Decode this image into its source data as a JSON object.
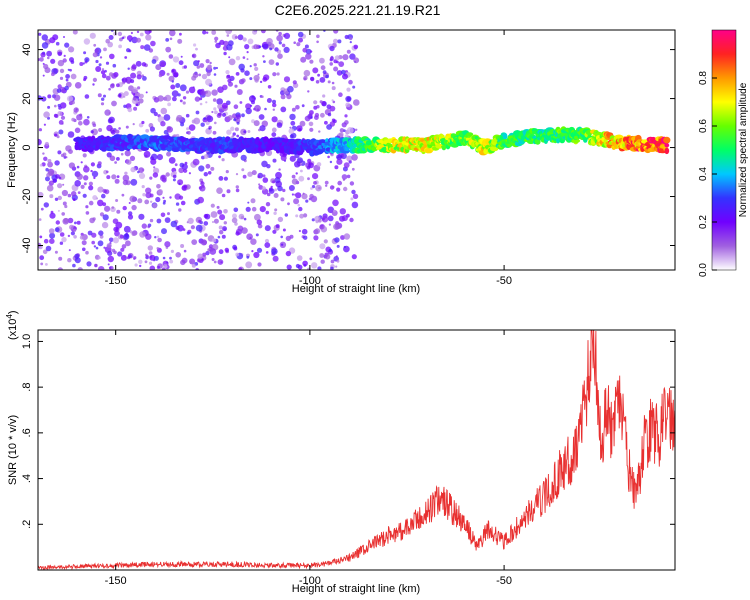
{
  "title": "C2E6.2025.221.21.19.R21",
  "chart_data": [
    {
      "type": "heatmap",
      "xlabel": "Height of straight line (km)",
      "ylabel": "Frequency (Hz)",
      "xlim": [
        -170,
        -6
      ],
      "ylim": [
        -50,
        48
      ],
      "xticks": [
        -150,
        -100,
        -50
      ],
      "yticks": [
        -40,
        -20,
        0,
        20,
        40
      ],
      "colorbar": {
        "label": "Normalized spectral amplitude",
        "range": [
          0.0,
          1.0
        ],
        "ticks": [
          0.0,
          0.2,
          0.4,
          0.6,
          0.8
        ],
        "tick_labels": [
          "0.0",
          "0.2",
          "0.4",
          "0.6",
          "0.8"
        ],
        "colors": [
          "#ffffff",
          "#a060e0",
          "#7000ff",
          "#3333ff",
          "#00c8ff",
          "#00ff66",
          "#66ff00",
          "#ffff00",
          "#ff9900",
          "#ff2222",
          "#ff0088"
        ]
      },
      "ridge": {
        "description_visible": false,
        "points": [
          {
            "x": -160,
            "y": 1,
            "amp": 0.25
          },
          {
            "x": -150,
            "y": 2,
            "amp": 0.3
          },
          {
            "x": -140,
            "y": 2,
            "amp": 0.35
          },
          {
            "x": -130,
            "y": 1,
            "amp": 0.3
          },
          {
            "x": -120,
            "y": 1,
            "amp": 0.3
          },
          {
            "x": -110,
            "y": 1,
            "amp": 0.25
          },
          {
            "x": -100,
            "y": 0,
            "amp": 0.3
          },
          {
            "x": -90,
            "y": 1,
            "amp": 0.45
          },
          {
            "x": -80,
            "y": 1,
            "amp": 0.7
          },
          {
            "x": -70,
            "y": 1,
            "amp": 0.75
          },
          {
            "x": -60,
            "y": 4,
            "amp": 0.6
          },
          {
            "x": -55,
            "y": 0,
            "amp": 0.75
          },
          {
            "x": -50,
            "y": 3,
            "amp": 0.55
          },
          {
            "x": -40,
            "y": 5,
            "amp": 0.55
          },
          {
            "x": -30,
            "y": 5,
            "amp": 0.6
          },
          {
            "x": -20,
            "y": 2,
            "amp": 0.85
          },
          {
            "x": -10,
            "y": 1,
            "amp": 0.95
          }
        ]
      }
    },
    {
      "type": "line",
      "xlabel": "Height of straight line (km)",
      "ylabel": "SNR (10 * v/v)",
      "y_multiplier": "(x10",
      "y_multiplier_exp": "4",
      "y_multiplier_close": ")",
      "xlim": [
        -170,
        -6
      ],
      "ylim": [
        0,
        1.05
      ],
      "xticks": [
        -150,
        -100,
        -50
      ],
      "yticks": [
        0.2,
        0.4,
        0.6,
        0.8,
        1.0
      ],
      "color": "#e83030",
      "series": [
        {
          "x": [
            -170,
            -160,
            -150,
            -140,
            -130,
            -120,
            -110,
            -100,
            -95,
            -90,
            -85,
            -80,
            -75,
            -70,
            -66,
            -63,
            -60,
            -57,
            -54,
            -50,
            -46,
            -42,
            -38,
            -35,
            -32,
            -30,
            -28,
            -27,
            -26,
            -25,
            -24,
            -22,
            -20,
            -18,
            -16,
            -14,
            -12,
            -10,
            -8,
            -6
          ],
          "y": [
            0.01,
            0.015,
            0.02,
            0.025,
            0.025,
            0.025,
            0.02,
            0.02,
            0.03,
            0.05,
            0.1,
            0.15,
            0.18,
            0.25,
            0.32,
            0.25,
            0.2,
            0.1,
            0.18,
            0.12,
            0.2,
            0.28,
            0.35,
            0.45,
            0.5,
            0.65,
            0.9,
            1.04,
            0.85,
            0.5,
            0.7,
            0.6,
            0.75,
            0.45,
            0.3,
            0.55,
            0.62,
            0.58,
            0.72,
            0.62
          ]
        }
      ]
    }
  ]
}
